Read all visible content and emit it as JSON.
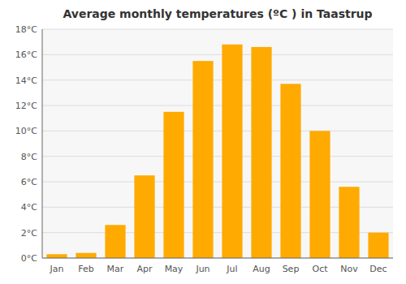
{
  "chart_data": {
    "type": "bar",
    "title": "Average monthly temperatures (ºC ) in Taastrup",
    "categories": [
      "Jan",
      "Feb",
      "Mar",
      "Apr",
      "May",
      "Jun",
      "Jul",
      "Aug",
      "Sep",
      "Oct",
      "Nov",
      "Dec"
    ],
    "values": [
      0.3,
      0.4,
      2.6,
      6.5,
      11.5,
      15.5,
      16.8,
      16.6,
      13.7,
      10.0,
      5.6,
      2.0
    ],
    "color": "#FFAA00",
    "ylim": [
      0,
      18
    ],
    "yticks": [
      {
        "value": 0,
        "label": "0°C"
      },
      {
        "value": 2,
        "label": "2°C"
      },
      {
        "value": 4,
        "label": "4°C"
      },
      {
        "value": 6,
        "label": "6°C"
      },
      {
        "value": 8,
        "label": "8°C"
      },
      {
        "value": 10,
        "label": "10°C"
      },
      {
        "value": 12,
        "label": "12°C"
      },
      {
        "value": 14,
        "label": "14°C"
      },
      {
        "value": 16,
        "label": "16°C"
      },
      {
        "value": 18,
        "label": "18°C"
      }
    ],
    "grid": true
  }
}
